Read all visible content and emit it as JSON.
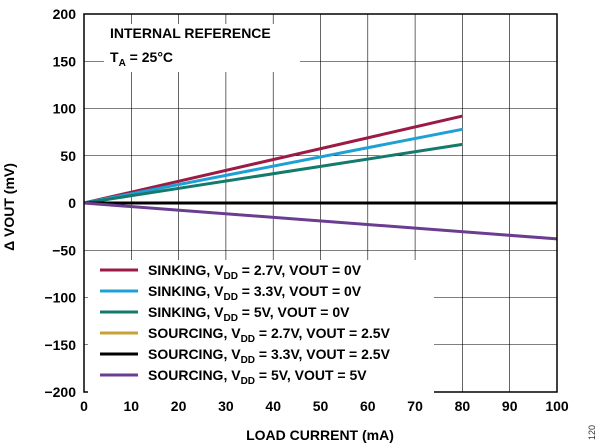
{
  "chart_data": {
    "type": "line",
    "xlabel": "LOAD CURRENT (mA)",
    "ylabel": "Δ VOUT (mV)",
    "xlim": [
      0,
      100
    ],
    "ylim": [
      -200,
      200
    ],
    "xticks": [
      "0",
      "10",
      "20",
      "30",
      "40",
      "50",
      "60",
      "70",
      "80",
      "90",
      "100"
    ],
    "yticks": [
      "200",
      "150",
      "100",
      "50",
      "0",
      "−50",
      "−100",
      "−150",
      "−200"
    ],
    "grid": true,
    "legend_position": "bottom-left",
    "annotations": {
      "line1": "INTERNAL REFERENCE",
      "line2_main": "T",
      "line2_sub": "A",
      "line2_rest": " = 25°C"
    },
    "figure_id": "120",
    "series": [
      {
        "name": "SINKING, VDD = 2.7V, VOUT = 0V",
        "label_pre": "SINKING, V",
        "label_sub": "DD",
        "label_post": " = 2.7V, VOUT = 0V",
        "color": "#9b1b45",
        "x": [
          0,
          80
        ],
        "y": [
          0,
          92
        ]
      },
      {
        "name": "SINKING, VDD = 3.3V, VOUT = 0V",
        "label_pre": "SINKING, V",
        "label_sub": "DD",
        "label_post": " = 3.3V, VOUT = 0V",
        "color": "#1fa0d5",
        "x": [
          0,
          80
        ],
        "y": [
          0,
          78
        ]
      },
      {
        "name": "SINKING, VDD = 5V, VOUT = 0V",
        "label_pre": "SINKING, V",
        "label_sub": "DD",
        "label_post": " = 5V, VOUT = 0V",
        "color": "#137a6c",
        "x": [
          0,
          80
        ],
        "y": [
          0,
          62
        ]
      },
      {
        "name": "SOURCING, VDD = 2.7V, VOUT = 2.5V",
        "label_pre": "SOURCING, V",
        "label_sub": "DD",
        "label_post": " = 2.7V, VOUT = 2.5V",
        "color": "#c8a13a",
        "x": [
          0,
          100
        ],
        "y": [
          0,
          0
        ]
      },
      {
        "name": "SOURCING, VDD = 3.3V, VOUT = 2.5V",
        "label_pre": "SOURCING, V",
        "label_sub": "DD",
        "label_post": " = 3.3V, VOUT = 2.5V",
        "color": "#000000",
        "x": [
          0,
          100
        ],
        "y": [
          0,
          0
        ]
      },
      {
        "name": "SOURCING, VDD = 5V, VOUT = 5V",
        "label_pre": "SOURCING, V",
        "label_sub": "DD",
        "label_post": " = 5V, VOUT = 5V",
        "color": "#6a3d91",
        "x": [
          0,
          100
        ],
        "y": [
          0,
          -38
        ]
      }
    ]
  }
}
